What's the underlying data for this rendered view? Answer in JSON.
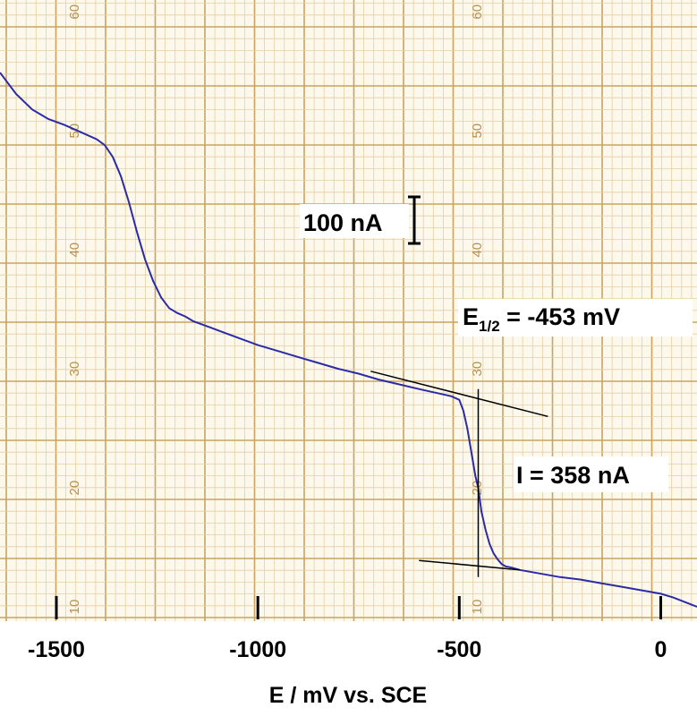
{
  "chart_data": {
    "type": "line",
    "title": "",
    "xlabel": "E / mV vs. SCE",
    "ylabel": "",
    "xlim": [
      -1640,
      90
    ],
    "ylim": [
      8.8,
      61
    ],
    "x_ticks": [
      -1500,
      -1000,
      -500,
      0
    ],
    "x_tick_labels": [
      "-1500",
      "-1000",
      "-500",
      "0"
    ],
    "paper_scale_labels": [
      "60",
      "50",
      "40",
      "30",
      "20",
      "10"
    ],
    "paper_scale_values": [
      60,
      50,
      40,
      30,
      20,
      10
    ],
    "series": [
      {
        "x": [
          -1640,
          -1600,
          -1560,
          -1520,
          -1480,
          -1440,
          -1400,
          -1380,
          -1360,
          -1340,
          -1320,
          -1300,
          -1280,
          -1260,
          -1240,
          -1220,
          -1200,
          -1180,
          -1160,
          -1120,
          -1080,
          -1040,
          -1000,
          -950,
          -900,
          -850,
          -800,
          -750,
          -700,
          -650,
          -600,
          -560,
          -520,
          -500,
          -490,
          -480,
          -470,
          -460,
          -453,
          -445,
          -435,
          -425,
          -415,
          -405,
          -395,
          -385,
          -370,
          -350,
          -300,
          -250,
          -200,
          -150,
          -100,
          -50,
          0,
          30,
          60,
          90
        ],
        "y": [
          54.9,
          53.1,
          51.8,
          51.0,
          50.5,
          49.9,
          49.3,
          48.8,
          47.8,
          46.2,
          44.0,
          41.5,
          39.2,
          37.4,
          36.0,
          35.1,
          34.7,
          34.4,
          34.0,
          33.5,
          33.0,
          32.5,
          32.0,
          31.5,
          31.0,
          30.5,
          30.0,
          29.6,
          29.1,
          28.7,
          28.3,
          28.0,
          27.7,
          27.4,
          26.5,
          25.0,
          23.0,
          21.0,
          20.0,
          18.0,
          16.5,
          15.3,
          14.5,
          14.0,
          13.6,
          13.4,
          13.3,
          13.1,
          12.8,
          12.5,
          12.3,
          12.0,
          11.7,
          11.4,
          11.1,
          10.8,
          10.4,
          10.0
        ],
        "color": "#2b2ba8"
      }
    ],
    "tangent_lines": [
      {
        "x": [
          -720,
          -280
        ],
        "y": [
          29.8,
          26.0
        ]
      },
      {
        "x": [
          -600,
          -350
        ],
        "y": [
          13.9,
          13.1
        ]
      }
    ],
    "halfwave_marker": {
      "x": -453,
      "y": [
        12.5,
        28.3
      ]
    },
    "scale_bar": {
      "label": "100 nA"
    },
    "annotations": [
      {
        "text_main": "E",
        "text_sub": "1/2",
        "text_rest": " = -453 mV"
      },
      {
        "text": "I = 358 nA"
      }
    ]
  }
}
